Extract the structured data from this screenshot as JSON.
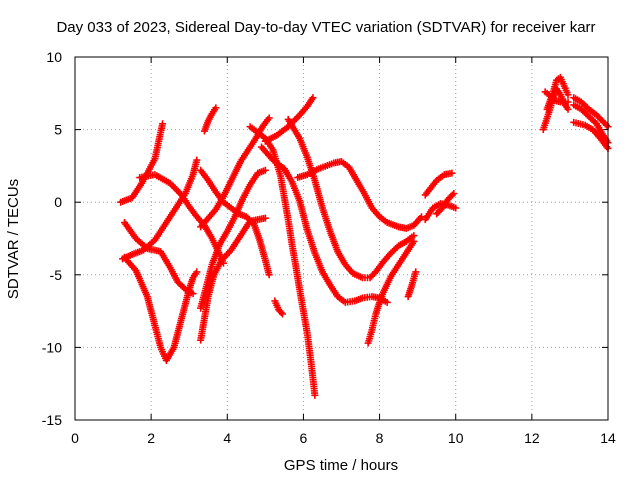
{
  "chart_data": {
    "type": "scatter",
    "title": "Day 033 of 2023, Sidereal Day-to-day VTEC variation (SDTVAR) for receiver karr",
    "xlabel": "GPS time / hours",
    "ylabel": "SDTVAR / TECUs",
    "xlim": [
      0,
      14
    ],
    "ylim": [
      -15,
      10
    ],
    "xticks": [
      "0",
      "2",
      "4",
      "6",
      "8",
      "10",
      "12",
      "14"
    ],
    "yticks": [
      "-15",
      "-10",
      "-5",
      "0",
      "5",
      "10"
    ],
    "grid": true,
    "marker": "plus",
    "color": "#ff0000",
    "tracks": [
      [
        [
          1.3,
          -3.8
        ],
        [
          1.6,
          -4.7
        ],
        [
          1.9,
          -6.5
        ],
        [
          2.1,
          -8.5
        ],
        [
          2.25,
          -10.0
        ],
        [
          2.4,
          -10.9
        ],
        [
          2.6,
          -10.0
        ],
        [
          2.8,
          -8.0
        ],
        [
          3.0,
          -6.0
        ],
        [
          3.1,
          -5.2
        ],
        [
          3.2,
          -4.8
        ]
      ],
      [
        [
          1.3,
          -1.4
        ],
        [
          1.6,
          -2.5
        ],
        [
          1.9,
          -3.2
        ],
        [
          2.1,
          -3.3
        ],
        [
          2.25,
          -3.4
        ],
        [
          2.5,
          -4.5
        ],
        [
          2.7,
          -5.5
        ],
        [
          2.9,
          -6.0
        ],
        [
          3.1,
          -6.3
        ]
      ],
      [
        [
          1.25,
          -3.9
        ],
        [
          1.5,
          -3.6
        ],
        [
          1.8,
          -3.3
        ],
        [
          2.1,
          -2.6
        ],
        [
          2.4,
          -1.4
        ],
        [
          2.7,
          -0.2
        ],
        [
          2.9,
          0.6
        ],
        [
          3.1,
          1.9
        ],
        [
          3.2,
          2.9
        ]
      ],
      [
        [
          1.2,
          0.0
        ],
        [
          1.5,
          0.3
        ],
        [
          1.75,
          1.3
        ],
        [
          1.9,
          2.0
        ],
        [
          2.1,
          3.0
        ],
        [
          2.2,
          4.2
        ],
        [
          2.3,
          5.4
        ]
      ],
      [
        [
          1.7,
          1.7
        ],
        [
          2.1,
          1.9
        ],
        [
          2.5,
          1.3
        ],
        [
          2.8,
          0.5
        ],
        [
          3.0,
          -0.3
        ],
        [
          3.2,
          -1.0
        ],
        [
          3.4,
          -1.6
        ],
        [
          3.6,
          -2.5
        ],
        [
          3.8,
          -3.6
        ],
        [
          3.9,
          -4.2
        ]
      ],
      [
        [
          3.3,
          -9.5
        ],
        [
          3.4,
          -8.0
        ],
        [
          3.5,
          -6.5
        ],
        [
          3.65,
          -5.0
        ],
        [
          3.85,
          -4.0
        ],
        [
          4.1,
          -3.3
        ],
        [
          4.35,
          -2.3
        ],
        [
          4.6,
          -1.3
        ],
        [
          4.8,
          -1.2
        ],
        [
          5.0,
          -1.1
        ]
      ],
      [
        [
          3.3,
          -7.3
        ],
        [
          3.45,
          -5.8
        ],
        [
          3.6,
          -4.3
        ],
        [
          3.8,
          -2.9
        ],
        [
          4.0,
          -2.0
        ],
        [
          4.2,
          -1.0
        ],
        [
          4.4,
          0.2
        ],
        [
          4.6,
          1.2
        ],
        [
          4.8,
          2.0
        ],
        [
          5.0,
          2.2
        ]
      ],
      [
        [
          3.3,
          -1.7
        ],
        [
          3.5,
          -1.1
        ],
        [
          3.7,
          -0.5
        ],
        [
          3.9,
          0.4
        ],
        [
          4.05,
          1.2
        ],
        [
          4.2,
          2.0
        ],
        [
          4.35,
          2.8
        ],
        [
          4.55,
          3.6
        ],
        [
          4.75,
          4.4
        ],
        [
          4.95,
          5.3
        ],
        [
          5.1,
          5.8
        ]
      ],
      [
        [
          3.4,
          4.9
        ],
        [
          3.5,
          5.6
        ],
        [
          3.6,
          6.1
        ],
        [
          3.7,
          6.5
        ]
      ],
      [
        [
          3.3,
          2.2
        ],
        [
          3.5,
          1.5
        ],
        [
          3.7,
          0.7
        ],
        [
          3.9,
          0.0
        ],
        [
          4.1,
          -0.4
        ],
        [
          4.3,
          -0.8
        ],
        [
          4.5,
          -1.0
        ],
        [
          4.7,
          -1.5
        ],
        [
          4.85,
          -2.6
        ],
        [
          5.0,
          -4.0
        ],
        [
          5.1,
          -5.0
        ]
      ],
      [
        [
          4.6,
          5.2
        ],
        [
          4.8,
          4.8
        ],
        [
          5.0,
          4.4
        ],
        [
          5.2,
          3.6
        ],
        [
          5.4,
          1.8
        ],
        [
          5.6,
          -1.2
        ],
        [
          5.7,
          -2.9
        ],
        [
          5.8,
          -4.4
        ],
        [
          5.9,
          -6.0
        ],
        [
          6.0,
          -7.5
        ],
        [
          6.1,
          -9.0
        ],
        [
          6.2,
          -11.0
        ],
        [
          6.3,
          -13.3
        ]
      ],
      [
        [
          5.25,
          -6.8
        ],
        [
          5.35,
          -7.4
        ],
        [
          5.45,
          -7.7
        ]
      ],
      [
        [
          5.0,
          4.2
        ],
        [
          5.3,
          4.6
        ],
        [
          5.6,
          5.2
        ],
        [
          5.9,
          6.0
        ],
        [
          6.1,
          6.6
        ],
        [
          6.25,
          7.2
        ]
      ],
      [
        [
          4.9,
          3.8
        ],
        [
          5.2,
          2.9
        ],
        [
          5.5,
          2.3
        ],
        [
          5.7,
          1.4
        ],
        [
          5.9,
          0.1
        ],
        [
          6.1,
          -1.9
        ],
        [
          6.3,
          -3.5
        ],
        [
          6.5,
          -4.8
        ],
        [
          6.7,
          -5.7
        ],
        [
          6.9,
          -6.5
        ],
        [
          7.1,
          -6.9
        ],
        [
          7.35,
          -6.8
        ],
        [
          7.55,
          -6.6
        ],
        [
          7.8,
          -6.5
        ],
        [
          8.0,
          -6.6
        ],
        [
          8.2,
          -6.9
        ]
      ],
      [
        [
          5.6,
          5.7
        ],
        [
          5.9,
          4.4
        ],
        [
          6.1,
          3.1
        ],
        [
          6.3,
          1.5
        ],
        [
          6.5,
          -0.4
        ],
        [
          6.7,
          -2.0
        ],
        [
          6.9,
          -3.4
        ],
        [
          7.1,
          -4.3
        ],
        [
          7.3,
          -4.9
        ],
        [
          7.55,
          -5.2
        ],
        [
          7.75,
          -5.2
        ],
        [
          7.9,
          -4.8
        ],
        [
          8.1,
          -4.1
        ],
        [
          8.3,
          -3.5
        ],
        [
          8.5,
          -3.0
        ],
        [
          8.7,
          -2.7
        ],
        [
          8.9,
          -2.3
        ]
      ],
      [
        [
          5.85,
          1.7
        ],
        [
          6.1,
          1.9
        ],
        [
          6.4,
          2.3
        ],
        [
          6.8,
          2.7
        ],
        [
          7.0,
          2.8
        ],
        [
          7.2,
          2.4
        ],
        [
          7.4,
          1.5
        ],
        [
          7.6,
          0.6
        ],
        [
          7.8,
          -0.4
        ],
        [
          8.0,
          -1.0
        ],
        [
          8.2,
          -1.4
        ],
        [
          8.5,
          -1.7
        ],
        [
          8.7,
          -1.8
        ],
        [
          8.9,
          -1.6
        ],
        [
          9.1,
          -1.0
        ]
      ],
      [
        [
          7.7,
          -9.7
        ],
        [
          7.8,
          -8.8
        ],
        [
          7.9,
          -7.7
        ],
        [
          8.0,
          -6.9
        ],
        [
          8.1,
          -6.2
        ],
        [
          8.3,
          -5.1
        ],
        [
          8.5,
          -4.3
        ],
        [
          8.7,
          -3.5
        ],
        [
          8.9,
          -2.7
        ]
      ],
      [
        [
          8.75,
          -6.5
        ],
        [
          8.85,
          -5.7
        ],
        [
          8.95,
          -4.8
        ]
      ],
      [
        [
          9.2,
          -1.2
        ],
        [
          9.4,
          -0.4
        ],
        [
          9.6,
          -0.1
        ],
        [
          9.8,
          -0.2
        ],
        [
          10.0,
          -0.4
        ]
      ],
      [
        [
          9.2,
          0.5
        ],
        [
          9.35,
          1.0
        ],
        [
          9.5,
          1.5
        ],
        [
          9.7,
          1.9
        ],
        [
          9.9,
          2.0
        ]
      ],
      [
        [
          9.5,
          -0.8
        ],
        [
          9.65,
          -0.4
        ],
        [
          9.8,
          0.2
        ],
        [
          9.95,
          0.6
        ]
      ],
      [
        [
          12.3,
          5.0
        ],
        [
          12.45,
          6.2
        ],
        [
          12.55,
          7.1
        ],
        [
          12.65,
          7.8
        ],
        [
          12.75,
          7.4
        ],
        [
          12.85,
          6.8
        ],
        [
          12.95,
          6.4
        ]
      ],
      [
        [
          12.35,
          7.6
        ],
        [
          12.5,
          7.3
        ],
        [
          12.6,
          7.0
        ],
        [
          12.75,
          6.9
        ],
        [
          12.95,
          6.9
        ]
      ],
      [
        [
          12.4,
          6.4
        ],
        [
          12.55,
          7.5
        ],
        [
          12.65,
          8.4
        ],
        [
          12.75,
          8.6
        ],
        [
          12.85,
          8.0
        ],
        [
          12.95,
          7.4
        ]
      ],
      [
        [
          13.1,
          7.2
        ],
        [
          13.3,
          6.9
        ],
        [
          13.5,
          6.4
        ],
        [
          13.7,
          6.0
        ],
        [
          13.85,
          5.6
        ],
        [
          14.0,
          5.2
        ]
      ],
      [
        [
          13.1,
          6.7
        ],
        [
          13.3,
          6.4
        ],
        [
          13.5,
          5.9
        ],
        [
          13.7,
          5.4
        ],
        [
          13.85,
          4.7
        ],
        [
          14.0,
          4.1
        ]
      ],
      [
        [
          13.1,
          5.5
        ],
        [
          13.4,
          5.3
        ],
        [
          13.6,
          5.0
        ],
        [
          13.8,
          4.4
        ],
        [
          14.0,
          3.7
        ]
      ]
    ]
  }
}
